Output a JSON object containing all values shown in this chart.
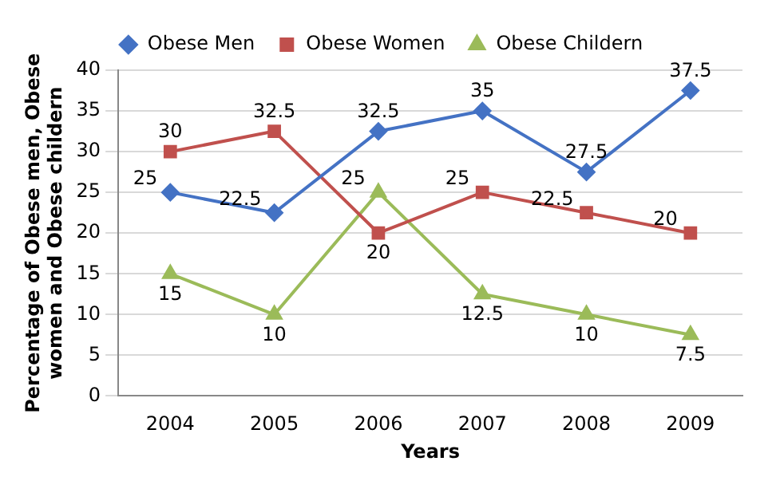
{
  "chart_data": {
    "type": "line",
    "xlabel": "Years",
    "ylabel": "Percentage of Obese men, Obese women and Obese childern",
    "categories": [
      "2004",
      "2005",
      "2006",
      "2007",
      "2008",
      "2009"
    ],
    "series": [
      {
        "name": "Obese Men",
        "color": "#4472c4",
        "values": [
          25,
          22.5,
          32.5,
          35,
          27.5,
          37.5
        ],
        "marker": "diamond"
      },
      {
        "name": "Obese Women",
        "color": "#c0504d",
        "values": [
          30,
          32.5,
          20,
          25,
          22.5,
          20
        ],
        "marker": "square"
      },
      {
        "name": "Obese Childern",
        "color": "#9bbb59",
        "values": [
          15,
          10,
          25,
          12.5,
          10,
          7.5
        ],
        "marker": "triangle"
      }
    ],
    "ylim": [
      0,
      40
    ],
    "yticks": [
      0,
      5,
      10,
      15,
      20,
      25,
      30,
      35,
      40
    ],
    "grid": "y",
    "legend": "top",
    "data_labels": true
  }
}
